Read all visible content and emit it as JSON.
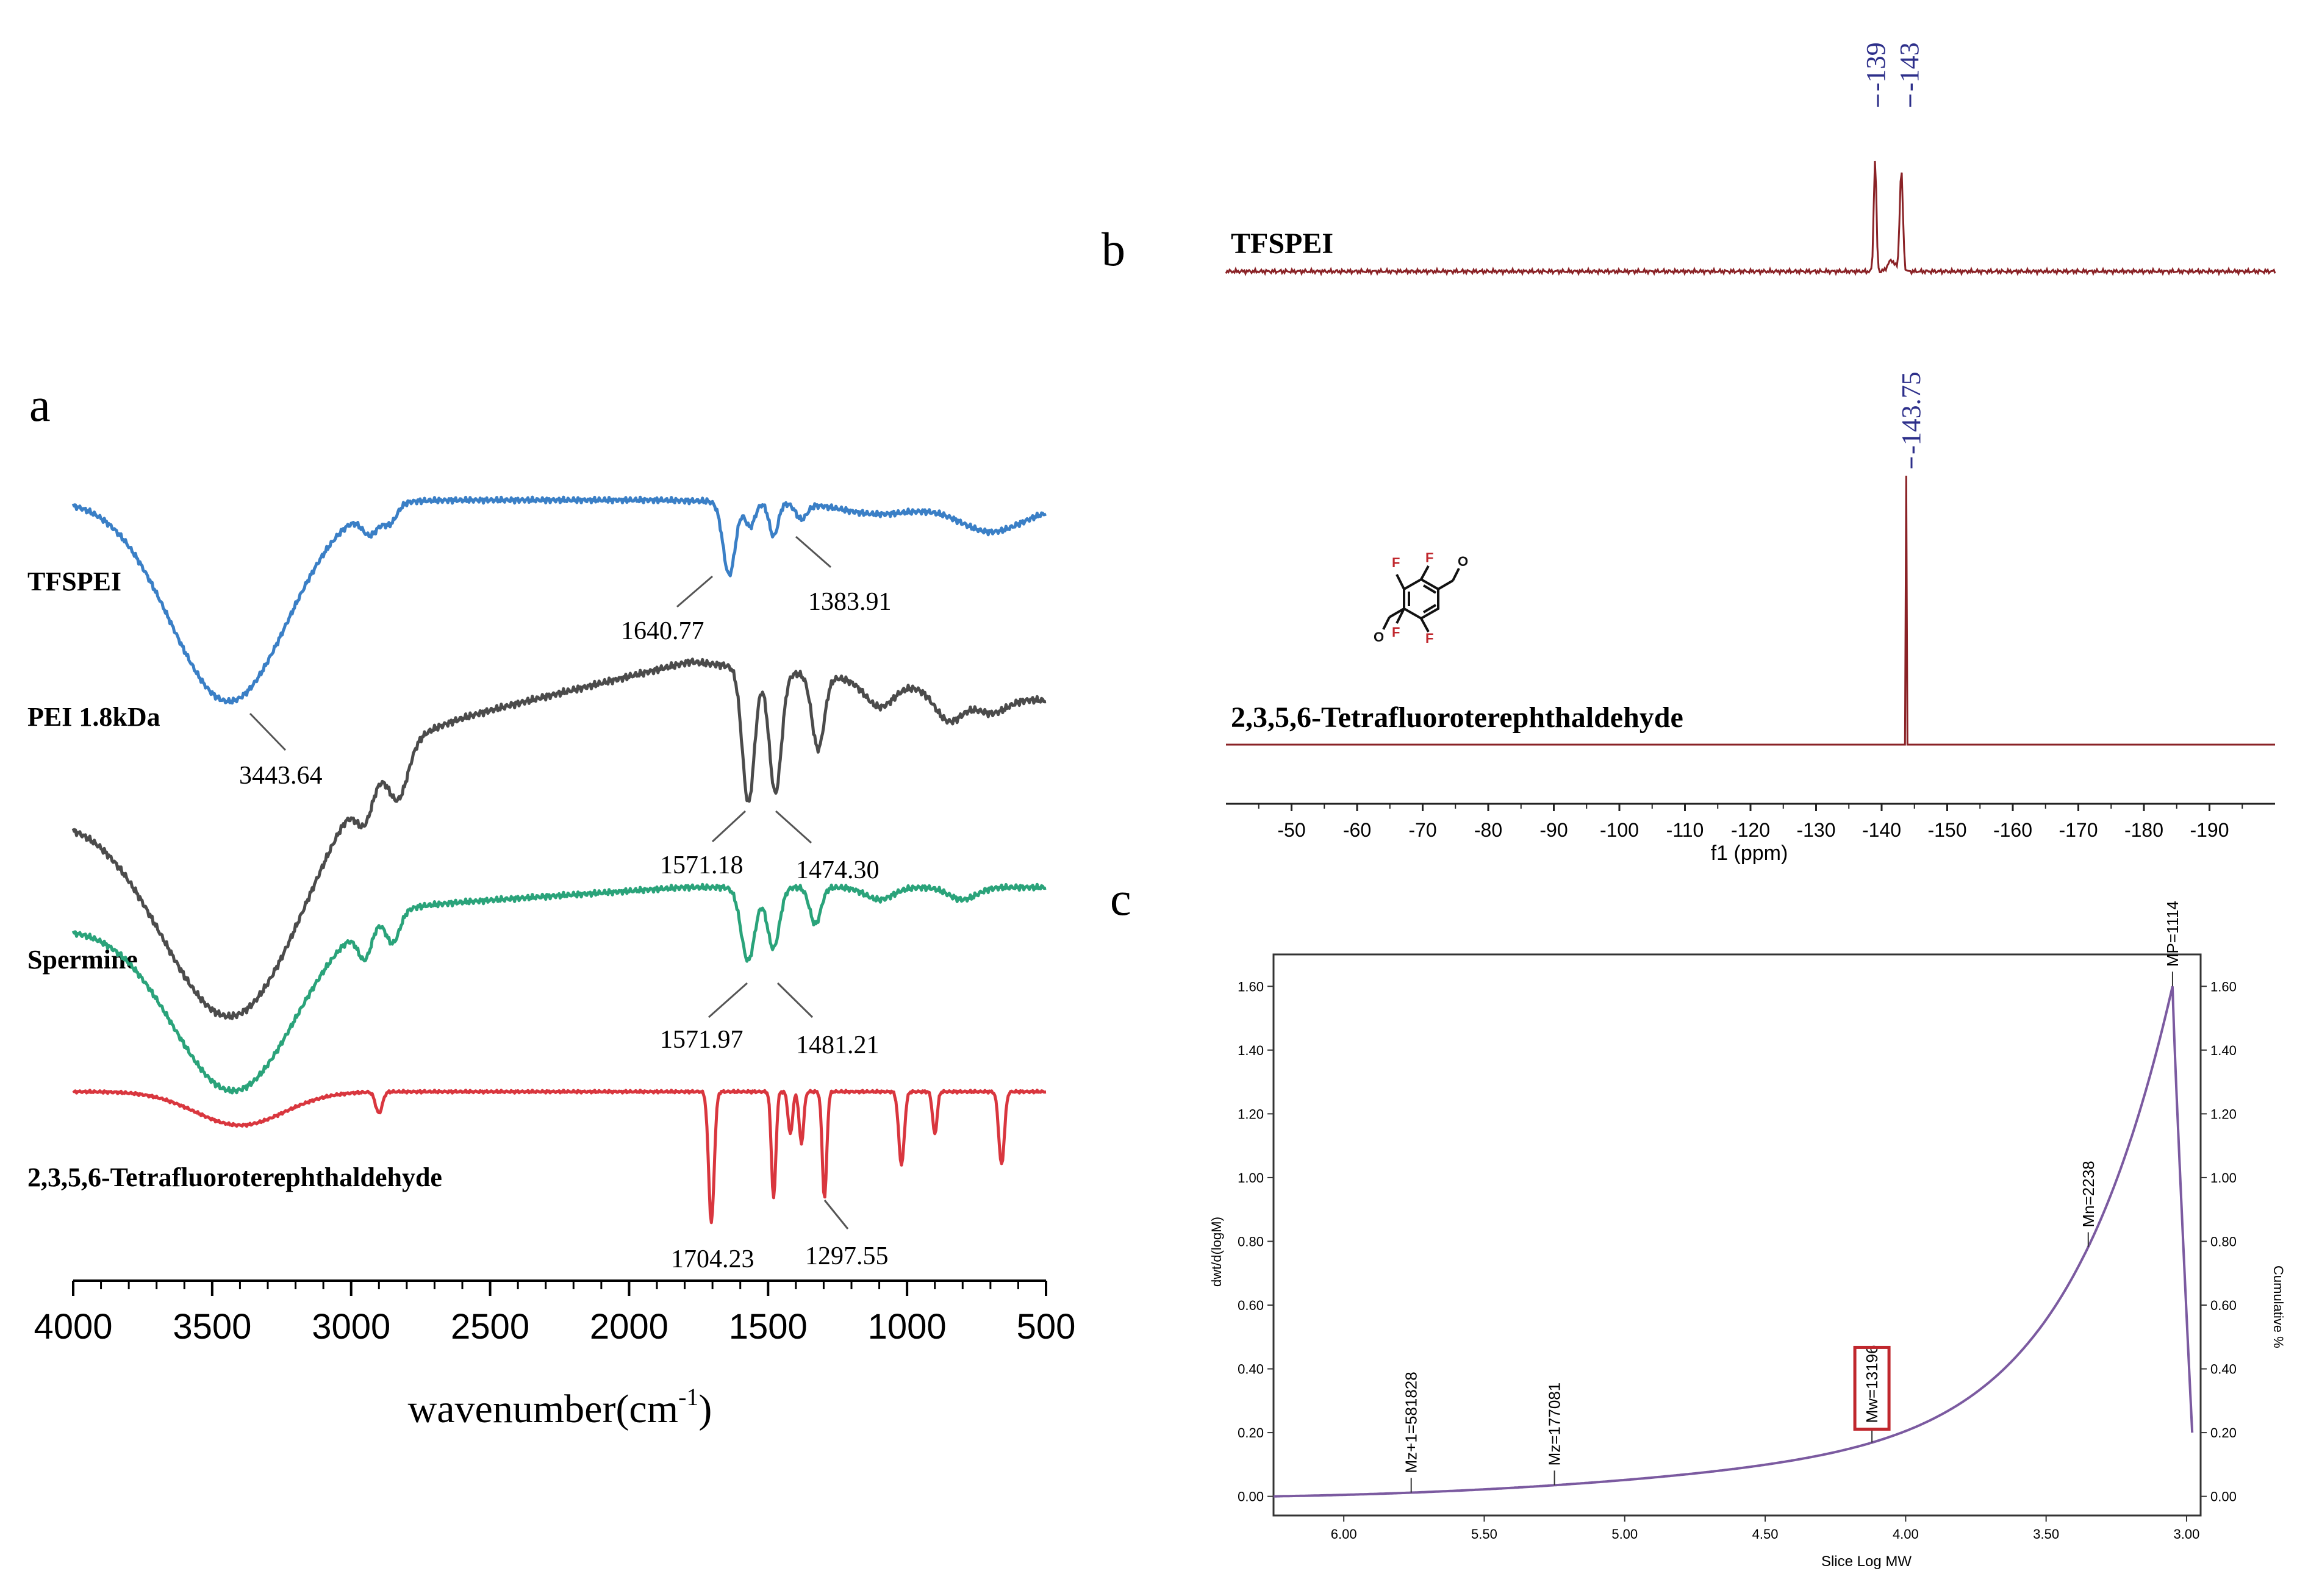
{
  "panels": {
    "a_label": "a",
    "b_label": "b",
    "c_label": "c"
  },
  "colors": {
    "tfspei": "#3a7fc6",
    "pei": "#4b4b4b",
    "spermine": "#2aa37a",
    "tfa": "#d9363e",
    "nmr": "#8a2226",
    "nmr_label": "#2d2f8a",
    "gpc_curve": "#7b5aa0",
    "gpc_box": "#c0272d"
  },
  "chart_data": [
    {
      "type": "line",
      "panel": "a",
      "xlabel": "wavenumber(cm",
      "xlabel_sup": "-1",
      "xlabel_end": ")",
      "xlim": [
        4000,
        500
      ],
      "xticks": [
        "4000",
        "3500",
        "3000",
        "2500",
        "2000",
        "1500",
        "1000",
        "500"
      ],
      "series": [
        {
          "name": "TFSPEI",
          "color": "#3a7fc6",
          "annotations": [
            "3443.64",
            "1640.77",
            "1383.91"
          ]
        },
        {
          "name": "PEI 1.8kDa",
          "color": "#4b4b4b",
          "annotations": [
            "1571.18",
            "1474.30"
          ]
        },
        {
          "name": "Spermine",
          "color": "#2aa37a",
          "annotations": [
            "1571.97",
            "1481.21"
          ]
        },
        {
          "name": "2,3,5,6-Tetrafluoroterephthaldehyde",
          "color": "#d9363e",
          "annotations": [
            "1704.23",
            "1297.55"
          ]
        }
      ]
    },
    {
      "type": "line",
      "panel": "b",
      "xlabel": "f1 (ppm)",
      "xlim": [
        -40,
        -200
      ],
      "xticks": [
        "-50",
        "-60",
        "-70",
        "-80",
        "-90",
        "-100",
        "-110",
        "-120",
        "-130",
        "-140",
        "-150",
        "-160",
        "-170",
        "-180",
        "-190"
      ],
      "series": [
        {
          "name": "TFSPEI",
          "peaks": [
            "-139",
            "-143"
          ],
          "peak_x": [
            -139,
            -143
          ]
        },
        {
          "name": "2,3,5,6-Tetrafluoroterephthaldehyde",
          "peaks": [
            "-143.75"
          ],
          "peak_x": [
            -143.75
          ]
        }
      ],
      "structure_atoms": {
        "f": "F",
        "o": "O"
      }
    },
    {
      "type": "line",
      "panel": "c",
      "xlabel": "Slice Log MW",
      "ylabel": "dwt/d(logM)",
      "y2label": "Cumulative %",
      "xlim": [
        6.25,
        2.95
      ],
      "ylim": [
        -0.06,
        1.7
      ],
      "xticks": [
        "6.00",
        "5.50",
        "5.00",
        "4.50",
        "4.00",
        "3.50",
        "3.00"
      ],
      "yticks": [
        "0.00",
        "0.20",
        "0.40",
        "0.60",
        "0.80",
        "1.00",
        "1.20",
        "1.40",
        "1.60"
      ],
      "markers": [
        {
          "label": "Mz+1=581828",
          "x": 5.76
        },
        {
          "label": "Mz=177081",
          "x": 5.25
        },
        {
          "label": "Mw=13196",
          "x": 4.12,
          "boxed": true
        },
        {
          "label": "Mn=2238",
          "x": 3.35
        },
        {
          "label": "MP=1114",
          "x": 3.05
        }
      ]
    }
  ]
}
